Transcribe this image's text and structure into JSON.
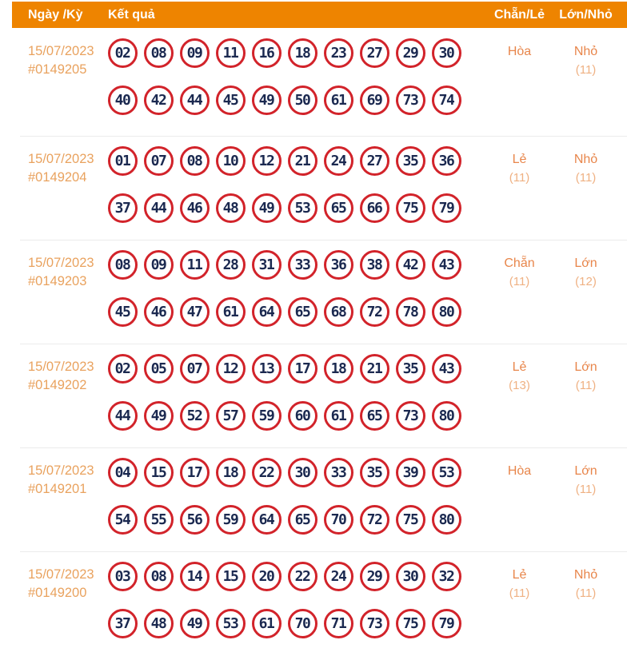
{
  "header": {
    "date_col": "Ngày /Kỳ",
    "result_col": "Kết quả",
    "parity_col": "Chẵn/Lẻ",
    "size_col": "Lớn/Nhỏ"
  },
  "colors": {
    "header_bg": "#EE8400",
    "header_text": "#FFFFFF",
    "date_text": "#E9A25E",
    "status_label": "#E8864B",
    "status_count": "#EFB183",
    "ball_border": "#D2232A",
    "ball_text": "#1B2950",
    "row_separator": "#EBEBEB"
  },
  "rows": [
    {
      "date": "15/07/2023",
      "draw_id": "#0149205",
      "numbers_line1": [
        "02",
        "08",
        "09",
        "11",
        "16",
        "18",
        "23",
        "27",
        "29",
        "30"
      ],
      "numbers_line2": [
        "40",
        "42",
        "44",
        "45",
        "49",
        "50",
        "61",
        "69",
        "73",
        "74"
      ],
      "chan_le": {
        "label": "Hòa",
        "count": ""
      },
      "lon_nho": {
        "label": "Nhỏ",
        "count": "(11)"
      }
    },
    {
      "date": "15/07/2023",
      "draw_id": "#0149204",
      "numbers_line1": [
        "01",
        "07",
        "08",
        "10",
        "12",
        "21",
        "24",
        "27",
        "35",
        "36"
      ],
      "numbers_line2": [
        "37",
        "44",
        "46",
        "48",
        "49",
        "53",
        "65",
        "66",
        "75",
        "79"
      ],
      "chan_le": {
        "label": "Lẻ",
        "count": "(11)"
      },
      "lon_nho": {
        "label": "Nhỏ",
        "count": "(11)"
      }
    },
    {
      "date": "15/07/2023",
      "draw_id": "#0149203",
      "numbers_line1": [
        "08",
        "09",
        "11",
        "28",
        "31",
        "33",
        "36",
        "38",
        "42",
        "43"
      ],
      "numbers_line2": [
        "45",
        "46",
        "47",
        "61",
        "64",
        "65",
        "68",
        "72",
        "78",
        "80"
      ],
      "chan_le": {
        "label": "Chẵn",
        "count": "(11)"
      },
      "lon_nho": {
        "label": "Lớn",
        "count": "(12)"
      }
    },
    {
      "date": "15/07/2023",
      "draw_id": "#0149202",
      "numbers_line1": [
        "02",
        "05",
        "07",
        "12",
        "13",
        "17",
        "18",
        "21",
        "35",
        "43"
      ],
      "numbers_line2": [
        "44",
        "49",
        "52",
        "57",
        "59",
        "60",
        "61",
        "65",
        "73",
        "80"
      ],
      "chan_le": {
        "label": "Lẻ",
        "count": "(13)"
      },
      "lon_nho": {
        "label": "Lớn",
        "count": "(11)"
      }
    },
    {
      "date": "15/07/2023",
      "draw_id": "#0149201",
      "numbers_line1": [
        "04",
        "15",
        "17",
        "18",
        "22",
        "30",
        "33",
        "35",
        "39",
        "53"
      ],
      "numbers_line2": [
        "54",
        "55",
        "56",
        "59",
        "64",
        "65",
        "70",
        "72",
        "75",
        "80"
      ],
      "chan_le": {
        "label": "Hòa",
        "count": ""
      },
      "lon_nho": {
        "label": "Lớn",
        "count": "(11)"
      }
    },
    {
      "date": "15/07/2023",
      "draw_id": "#0149200",
      "numbers_line1": [
        "03",
        "08",
        "14",
        "15",
        "20",
        "22",
        "24",
        "29",
        "30",
        "32"
      ],
      "numbers_line2": [
        "37",
        "48",
        "49",
        "53",
        "61",
        "70",
        "71",
        "73",
        "75",
        "79"
      ],
      "chan_le": {
        "label": "Lẻ",
        "count": "(11)"
      },
      "lon_nho": {
        "label": "Nhỏ",
        "count": "(11)"
      }
    }
  ]
}
